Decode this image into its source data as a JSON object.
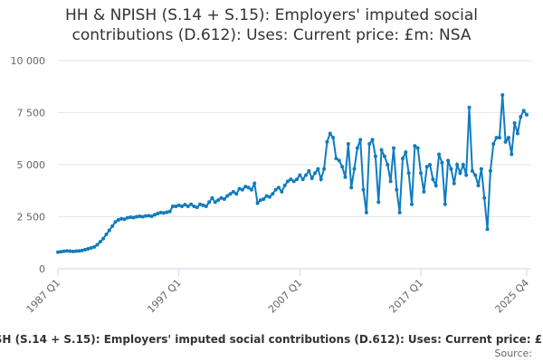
{
  "chart_data": {
    "type": "line",
    "title": "HH & NPISH (S.14 + S.15): Employers' imputed social contributions (D.612): Uses: Current price: £m: NSA",
    "source": "Source:",
    "categories": [
      "1987 Q1",
      null,
      null,
      null,
      null,
      null,
      null,
      null,
      null,
      null,
      null,
      null,
      null,
      null,
      null,
      null,
      null,
      null,
      null,
      null,
      null,
      null,
      null,
      null,
      null,
      null,
      null,
      null,
      null,
      null,
      null,
      null,
      null,
      null,
      null,
      null,
      null,
      null,
      null,
      null,
      "1997 Q1",
      null,
      null,
      null,
      null,
      null,
      null,
      null,
      null,
      null,
      null,
      null,
      null,
      null,
      null,
      null,
      null,
      null,
      null,
      null,
      null,
      null,
      null,
      null,
      null,
      null,
      null,
      null,
      null,
      null,
      null,
      null,
      null,
      null,
      null,
      null,
      null,
      null,
      null,
      null,
      "2007 Q1",
      null,
      null,
      null,
      null,
      null,
      null,
      null,
      null,
      null,
      null,
      null,
      null,
      null,
      null,
      null,
      null,
      null,
      null,
      null,
      null,
      null,
      null,
      null,
      null,
      null,
      null,
      null,
      null,
      null,
      null,
      null,
      null,
      null,
      null,
      null,
      null,
      null,
      null,
      null,
      "2017 Q1",
      null,
      null,
      null,
      null,
      null,
      null,
      null,
      null,
      null,
      null,
      null,
      null,
      null,
      null,
      null,
      null,
      null,
      null,
      null,
      null,
      null,
      null,
      null,
      null,
      null,
      null,
      null,
      null,
      null,
      null,
      null,
      null,
      null,
      null,
      "2025 Q4"
    ],
    "series": [
      {
        "name": "HH & NPISH (S.14 + S.15): Employers' imputed social contributions (D.612): Uses: Current price: £m: NSA",
        "color": "#0f7cbf",
        "values": [
          800,
          820,
          840,
          860,
          850,
          830,
          850,
          860,
          880,
          920,
          960,
          1000,
          1050,
          1150,
          1300,
          1450,
          1650,
          1850,
          2050,
          2250,
          2350,
          2400,
          2380,
          2450,
          2480,
          2460,
          2500,
          2520,
          2500,
          2540,
          2550,
          2520,
          2600,
          2650,
          2700,
          2680,
          2720,
          2750,
          3000,
          3000,
          3050,
          3000,
          3080,
          3000,
          3100,
          3000,
          2950,
          3100,
          3050,
          3000,
          3200,
          3400,
          3200,
          3300,
          3400,
          3350,
          3500,
          3600,
          3700,
          3600,
          3850,
          3800,
          3950,
          3900,
          3800,
          4100,
          3150,
          3300,
          3350,
          3500,
          3450,
          3600,
          3800,
          3900,
          3700,
          4000,
          4200,
          4300,
          4200,
          4300,
          4500,
          4300,
          4500,
          4700,
          4350,
          4600,
          4800,
          4300,
          4800,
          6100,
          6500,
          6300,
          5300,
          5200,
          4900,
          4400,
          6000,
          3900,
          4800,
          5800,
          6200,
          3800,
          2700,
          6000,
          6200,
          5400,
          3200,
          5700,
          5400,
          5000,
          4200,
          5800,
          3800,
          2700,
          5300,
          5600,
          4600,
          3100,
          5900,
          5800,
          4600,
          3700,
          4900,
          5000,
          4300,
          4000,
          5500,
          5100,
          3100,
          5200,
          4800,
          4100,
          5000,
          4600,
          5000,
          4500,
          7750,
          4700,
          4500,
          4000,
          4800,
          3400,
          1900,
          4700,
          6000,
          6300,
          6300,
          8350,
          6100,
          6300,
          5500,
          7000,
          6500,
          7300,
          7600,
          7400
        ]
      }
    ],
    "ylim": [
      0,
      10000
    ],
    "yticks": [
      0,
      {
        "value": 2500,
        "label": "2 500"
      },
      {
        "value": 5000,
        "label": "5 000"
      },
      {
        "value": 7500,
        "label": "7 500"
      },
      {
        "value": 10000,
        "label": "10 000"
      }
    ],
    "grid": true
  }
}
